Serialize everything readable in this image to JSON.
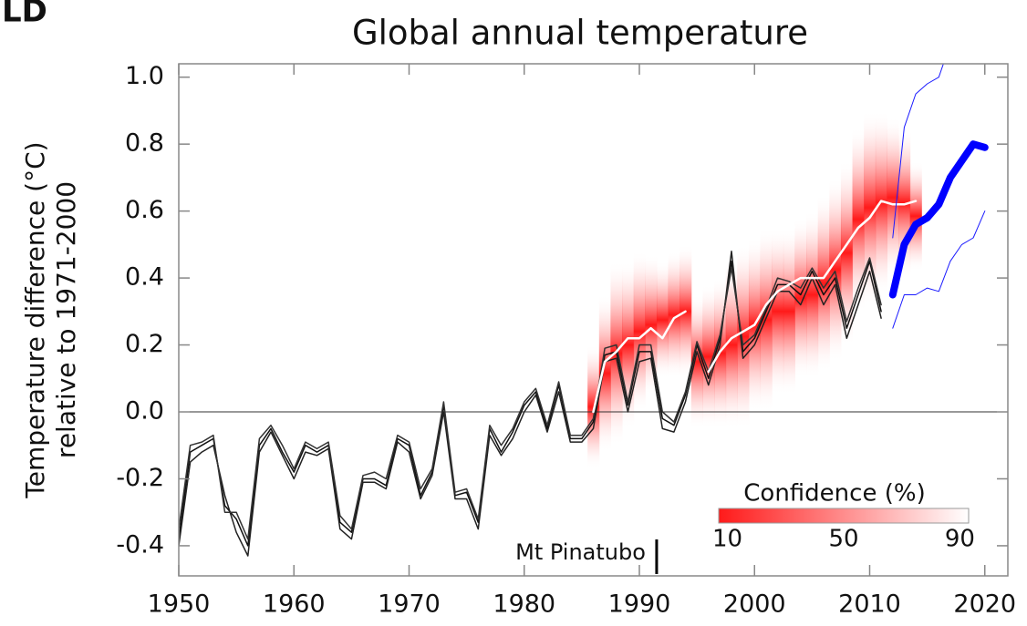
{
  "chart_data": {
    "type": "line",
    "panel_label": "LD",
    "title": "Global annual temperature",
    "y_label": [
      "Temperature difference (°C)",
      "relative to 1971-2000"
    ],
    "xlim": [
      1950,
      2022
    ],
    "xticks": [
      1950,
      1960,
      1970,
      1980,
      1990,
      2000,
      2010,
      2020
    ],
    "ylim": [
      -0.49,
      1.04
    ],
    "yticks": [
      {
        "value": -0.4,
        "label": "-0.4"
      },
      {
        "value": -0.2,
        "label": "-0.2"
      },
      {
        "value": 0,
        "label": "0.0"
      },
      {
        "value": 0.2,
        "label": "0.2"
      },
      {
        "value": 0.4,
        "label": "0.4"
      },
      {
        "value": 0.6,
        "label": "0.6"
      },
      {
        "value": 0.8,
        "label": "0.8"
      },
      {
        "value": 1,
        "label": "1.0"
      }
    ],
    "hline": 0,
    "band": {
      "color": "#ff1a1a",
      "x": [
        1986,
        1987,
        1988,
        1989,
        1990,
        1991,
        1992,
        1993,
        1994,
        1995,
        1996,
        1997,
        1998,
        1999,
        2000,
        2001,
        2002,
        2003,
        2004,
        2005,
        2006,
        2007,
        2008,
        2009,
        2010,
        2011,
        2012,
        2013,
        2014
      ],
      "lower": [
        -0.17,
        -0.12,
        -0.1,
        -0.05,
        0,
        0.05,
        0.1,
        0.1,
        0.1,
        -0.05,
        -0.05,
        -0.05,
        -0.05,
        -0.05,
        0,
        0,
        0.05,
        0.05,
        0.1,
        0.1,
        0.12,
        0.15,
        0.2,
        0.3,
        0.32,
        0.35,
        0.4,
        0.4,
        0.42
      ],
      "upper": [
        0.2,
        0.35,
        0.45,
        0.45,
        0.48,
        0.47,
        0.45,
        0.48,
        0.5,
        0.35,
        0.38,
        0.4,
        0.45,
        0.5,
        0.52,
        0.55,
        0.55,
        0.55,
        0.58,
        0.6,
        0.65,
        0.7,
        0.75,
        0.85,
        0.9,
        0.9,
        0.88,
        0.85,
        0.75
      ]
    },
    "series": [
      {
        "color": "#111111",
        "width": 1.5,
        "x": [
          1950,
          1951,
          1952,
          1953,
          1954,
          1955,
          1956,
          1957,
          1958,
          1959,
          1960,
          1961,
          1962,
          1963,
          1964,
          1965,
          1966,
          1967,
          1968,
          1969,
          1970,
          1971,
          1972,
          1973,
          1974,
          1975,
          1976,
          1977,
          1978,
          1979,
          1980,
          1981,
          1982,
          1983,
          1984,
          1985,
          1986,
          1987,
          1988,
          1989,
          1990,
          1991,
          1992,
          1993,
          1994,
          1995,
          1996,
          1997,
          1998,
          1999,
          2000,
          2001,
          2002,
          2003,
          2004,
          2005,
          2006,
          2007,
          2008,
          2009,
          2010,
          2011
        ],
        "values": [
          -0.38,
          -0.12,
          -0.1,
          -0.08,
          -0.28,
          -0.32,
          -0.4,
          -0.1,
          -0.05,
          -0.12,
          -0.18,
          -0.1,
          -0.12,
          -0.1,
          -0.33,
          -0.36,
          -0.2,
          -0.2,
          -0.22,
          -0.08,
          -0.1,
          -0.25,
          -0.18,
          0.02,
          -0.25,
          -0.24,
          -0.33,
          -0.05,
          -0.12,
          -0.06,
          0.02,
          0.06,
          -0.05,
          0.08,
          -0.08,
          -0.08,
          -0.03,
          0.17,
          0.18,
          0.02,
          0.18,
          0.18,
          -0.02,
          -0.04,
          0.05,
          0.2,
          0.1,
          0.22,
          0.45,
          0.18,
          0.22,
          0.3,
          0.38,
          0.38,
          0.35,
          0.42,
          0.35,
          0.4,
          0.25,
          0.35,
          0.45,
          0.3
        ]
      },
      {
        "color": "#222222",
        "width": 1.5,
        "x": [
          1950,
          1951,
          1952,
          1953,
          1954,
          1955,
          1956,
          1957,
          1958,
          1959,
          1960,
          1961,
          1962,
          1963,
          1964,
          1965,
          1966,
          1967,
          1968,
          1969,
          1970,
          1971,
          1972,
          1973,
          1974,
          1975,
          1976,
          1977,
          1978,
          1979,
          1980,
          1981,
          1982,
          1983,
          1984,
          1985,
          1986,
          1987,
          1988,
          1989,
          1990,
          1991,
          1992,
          1993,
          1994,
          1995,
          1996,
          1997,
          1998,
          1999,
          2000,
          2001,
          2002,
          2003,
          2004,
          2005,
          2006,
          2007,
          2008,
          2009,
          2010,
          2011
        ],
        "values": [
          -0.4,
          -0.15,
          -0.12,
          -0.1,
          -0.25,
          -0.36,
          -0.43,
          -0.12,
          -0.06,
          -0.13,
          -0.2,
          -0.12,
          -0.13,
          -0.11,
          -0.35,
          -0.38,
          -0.21,
          -0.21,
          -0.23,
          -0.09,
          -0.12,
          -0.26,
          -0.19,
          0.0,
          -0.26,
          -0.26,
          -0.35,
          -0.07,
          -0.13,
          -0.08,
          0.0,
          0.05,
          -0.06,
          0.06,
          -0.09,
          -0.09,
          -0.05,
          0.15,
          0.16,
          0.0,
          0.15,
          0.16,
          -0.05,
          -0.06,
          0.03,
          0.18,
          0.08,
          0.2,
          0.48,
          0.16,
          0.2,
          0.28,
          0.36,
          0.36,
          0.32,
          0.4,
          0.32,
          0.38,
          0.22,
          0.32,
          0.42,
          0.28
        ]
      },
      {
        "color": "#333333",
        "width": 1.5,
        "x": [
          1950,
          1951,
          1952,
          1953,
          1954,
          1955,
          1956,
          1957,
          1958,
          1959,
          1960,
          1961,
          1962,
          1963,
          1964,
          1965,
          1966,
          1967,
          1968,
          1969,
          1970,
          1971,
          1972,
          1973,
          1974,
          1975,
          1976,
          1977,
          1978,
          1979,
          1980,
          1981,
          1982,
          1983,
          1984,
          1985,
          1986,
          1987,
          1988,
          1989,
          1990,
          1991,
          1992,
          1993,
          1994,
          1995,
          1996,
          1997,
          1998,
          1999,
          2000,
          2001,
          2002,
          2003,
          2004,
          2005,
          2006,
          2007,
          2008,
          2009,
          2010,
          2011
        ],
        "values": [
          -0.35,
          -0.1,
          -0.09,
          -0.07,
          -0.3,
          -0.3,
          -0.38,
          -0.08,
          -0.04,
          -0.1,
          -0.17,
          -0.09,
          -0.11,
          -0.09,
          -0.31,
          -0.35,
          -0.19,
          -0.18,
          -0.2,
          -0.07,
          -0.09,
          -0.23,
          -0.17,
          0.03,
          -0.24,
          -0.23,
          -0.32,
          -0.04,
          -0.1,
          -0.05,
          0.03,
          0.07,
          -0.04,
          0.09,
          -0.07,
          -0.07,
          -0.02,
          0.19,
          0.2,
          0.03,
          0.2,
          0.2,
          0.0,
          -0.03,
          0.06,
          0.21,
          0.12,
          0.23,
          0.43,
          0.2,
          0.23,
          0.31,
          0.4,
          0.39,
          0.37,
          0.43,
          0.37,
          0.42,
          0.27,
          0.37,
          0.46,
          0.32
        ]
      },
      {
        "color": "#ffffff",
        "width": 2.5,
        "x": [
          1986,
          1987,
          1988,
          1989,
          1990,
          1991,
          1992,
          1993,
          1994,
          1995,
          1996,
          1997,
          1998,
          1999,
          2000,
          2001,
          2002,
          2003,
          2004,
          2005,
          2006,
          2007,
          2008,
          2009,
          2010,
          2011,
          2012,
          2013,
          2014
        ],
        "values": [
          0.0,
          0.15,
          0.18,
          0.22,
          0.22,
          0.25,
          0.22,
          0.28,
          0.3,
          null,
          0.12,
          0.18,
          0.22,
          0.24,
          0.26,
          0.32,
          0.36,
          0.38,
          0.4,
          0.4,
          0.4,
          0.45,
          0.5,
          0.55,
          0.58,
          0.63,
          0.62,
          0.62,
          0.63
        ]
      },
      {
        "color": "#1a1aff",
        "width": 1,
        "x": [
          2012,
          2013,
          2014,
          2015,
          2016,
          2017,
          2018,
          2019,
          2020
        ],
        "values": [
          0.52,
          0.85,
          0.95,
          0.98,
          1.0,
          1.1,
          1.15,
          1.05,
          1.05
        ]
      },
      {
        "color": "#1a1aff",
        "width": 1,
        "x": [
          2012,
          2013,
          2014,
          2015,
          2016,
          2017,
          2018,
          2019,
          2020
        ],
        "values": [
          0.25,
          0.35,
          0.35,
          0.37,
          0.36,
          0.45,
          0.5,
          0.52,
          0.6
        ]
      },
      {
        "color": "#0000ff",
        "width": 8,
        "x": [
          2012,
          2013,
          2014,
          2015,
          2016,
          2017,
          2018,
          2019,
          2020
        ],
        "values": [
          0.35,
          0.5,
          0.56,
          0.58,
          0.62,
          0.7,
          0.75,
          0.8,
          0.79
        ]
      }
    ],
    "annotation": {
      "text": "Mt Pinatubo",
      "x": 1991.5
    },
    "colorbar": {
      "title": "Confidence (%)",
      "lim": [
        7,
        93
      ],
      "ticks": [
        10,
        50,
        90
      ],
      "color": "#ff1a1a"
    }
  }
}
